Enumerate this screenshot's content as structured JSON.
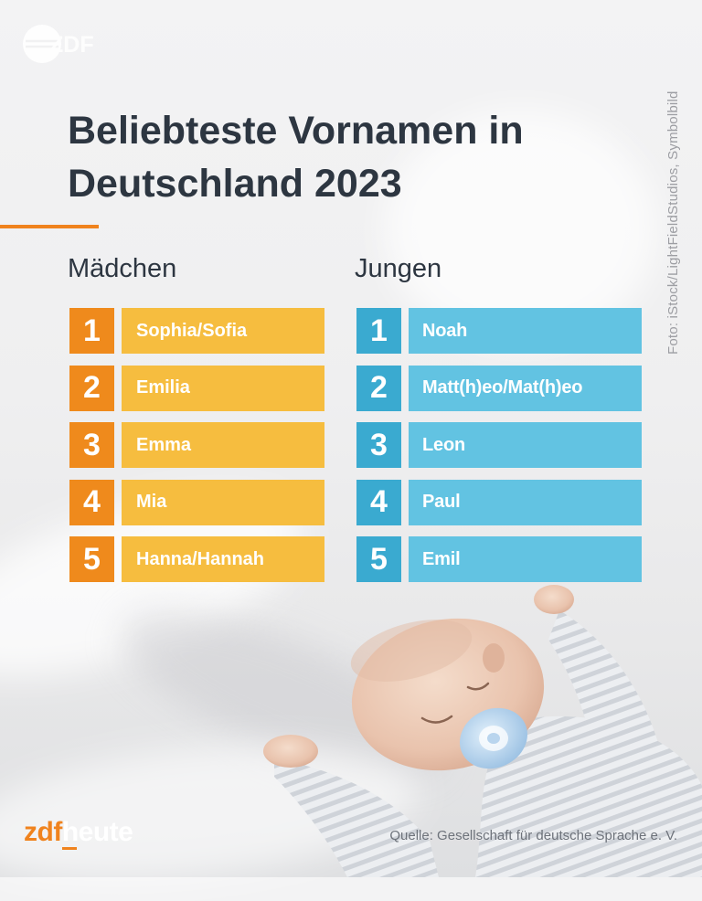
{
  "header": {
    "broadcaster_watermark": "ZDF",
    "photo_credit": "Foto: iStock/LightFieldStudios, Symbolbild",
    "title_line1": "Beliebteste Vornamen in",
    "title_line2": "Deutschland 2023"
  },
  "colors": {
    "accent": "#f0831e",
    "girls_rank": "#ef8a1c",
    "girls_bar": "#f6bd3f",
    "boys_rank": "#3aaad0",
    "boys_bar": "#62c3e2",
    "title_text": "#2d3641"
  },
  "girls": {
    "heading": "Mädchen",
    "items": [
      {
        "rank": "1",
        "name": "Sophia/Sofia"
      },
      {
        "rank": "2",
        "name": "Emilia"
      },
      {
        "rank": "3",
        "name": "Emma"
      },
      {
        "rank": "4",
        "name": "Mia"
      },
      {
        "rank": "5",
        "name": "Hanna/Hannah"
      }
    ]
  },
  "boys": {
    "heading": "Jungen",
    "items": [
      {
        "rank": "1",
        "name": "Noah"
      },
      {
        "rank": "2",
        "name": "Matt(h)eo/Mat(h)eo"
      },
      {
        "rank": "3",
        "name": "Leon"
      },
      {
        "rank": "4",
        "name": "Paul"
      },
      {
        "rank": "5",
        "name": "Emil"
      }
    ]
  },
  "footer": {
    "logo_part1": "zdf",
    "logo_part2": "heute",
    "source": "Quelle: Gesellschaft für deutsche Sprache e. V."
  },
  "icons": {
    "watermark": "zdf-logo-icon",
    "photo": "sleeping-baby-photo"
  }
}
